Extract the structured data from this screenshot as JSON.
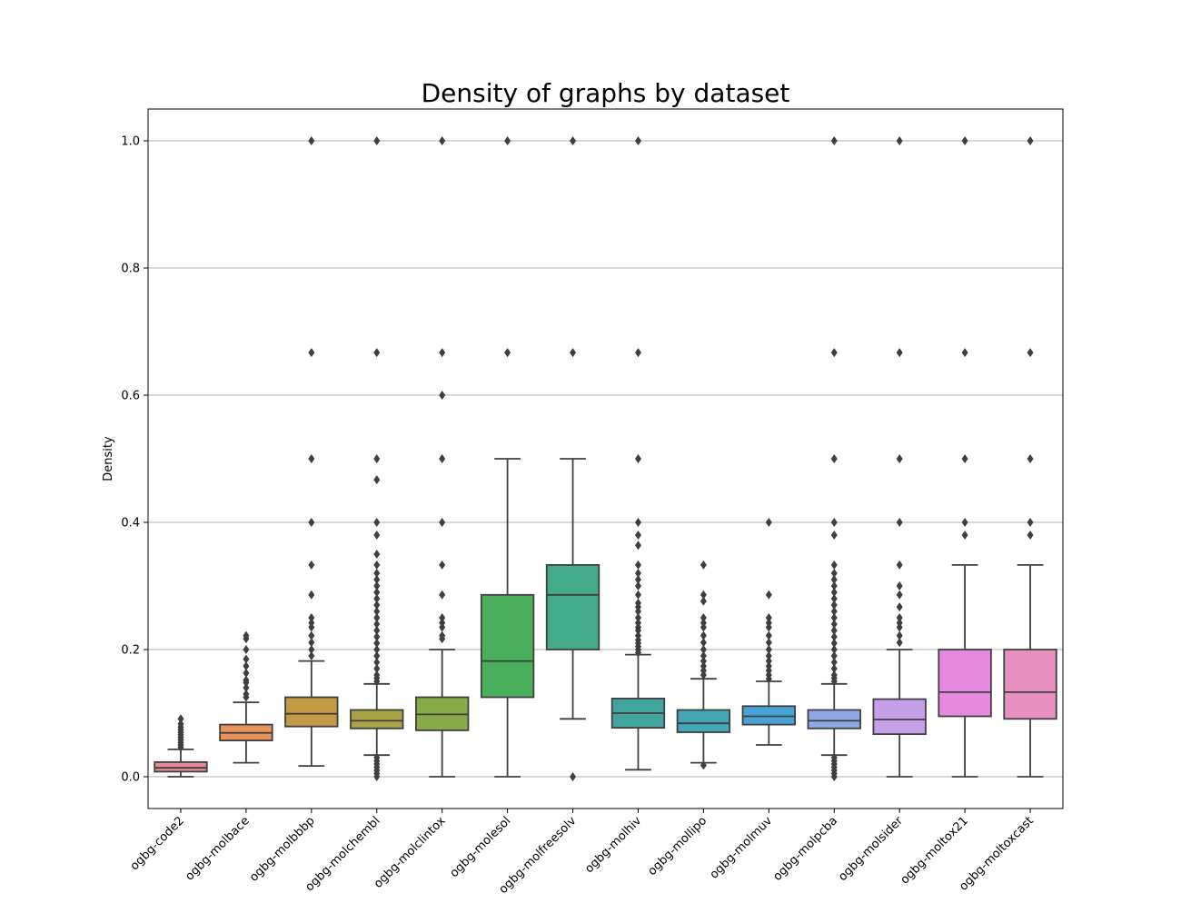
{
  "chart_data": {
    "type": "box",
    "title": "Density of graphs by dataset",
    "xlabel": "",
    "ylabel": "Density",
    "ylim": [
      -0.05,
      1.05
    ],
    "yticks": [
      0.0,
      0.2,
      0.4,
      0.6,
      0.8,
      1.0
    ],
    "ytick_labels": [
      "0.0",
      "0.2",
      "0.4",
      "0.6",
      "0.8",
      "1.0"
    ],
    "grid": "horizontal",
    "categories": [
      "ogbg-code2",
      "ogbg-molbace",
      "ogbg-molbbbp",
      "ogbg-molchembl",
      "ogbg-molclintox",
      "ogbg-molesol",
      "ogbg-molfreesolv",
      "ogbg-molhiv",
      "ogbg-mollipo",
      "ogbg-molmuv",
      "ogbg-molpcba",
      "ogbg-molsider",
      "ogbg-moltox21",
      "ogbg-moltoxcast"
    ],
    "boxes": [
      {
        "whisker_low": 0.0,
        "q1": 0.008,
        "median": 0.014,
        "q3": 0.023,
        "whisker_high": 0.043,
        "color": "#e88b96",
        "outliers": [
          0.046,
          0.05,
          0.054,
          0.058,
          0.062,
          0.066,
          0.07,
          0.074,
          0.078,
          0.083,
          0.091
        ]
      },
      {
        "whisker_low": 0.022,
        "q1": 0.057,
        "median": 0.069,
        "q3": 0.082,
        "whisker_high": 0.117,
        "color": "#e8935a",
        "outliers": [
          0.125,
          0.13,
          0.14,
          0.148,
          0.152,
          0.163,
          0.174,
          0.185,
          0.2,
          0.217,
          0.222
        ]
      },
      {
        "whisker_low": 0.017,
        "q1": 0.079,
        "median": 0.099,
        "q3": 0.125,
        "whisker_high": 0.182,
        "color": "#c39a46",
        "outliers": [
          0.19,
          0.2,
          0.211,
          0.222,
          0.235,
          0.242,
          0.25,
          0.286,
          0.333,
          0.4,
          0.5,
          0.667,
          1.0
        ]
      },
      {
        "whisker_low": 0.034,
        "q1": 0.076,
        "median": 0.088,
        "q3": 0.105,
        "whisker_high": 0.146,
        "color": "#a6a445",
        "outliers": [
          0.0,
          0.005,
          0.01,
          0.015,
          0.02,
          0.025,
          0.03,
          0.15,
          0.155,
          0.16,
          0.17,
          0.18,
          0.19,
          0.2,
          0.21,
          0.22,
          0.23,
          0.24,
          0.25,
          0.26,
          0.27,
          0.28,
          0.29,
          0.3,
          0.31,
          0.32,
          0.333,
          0.35,
          0.38,
          0.4,
          0.467,
          0.5,
          0.667,
          1.0
        ]
      },
      {
        "whisker_low": 0.0,
        "q1": 0.073,
        "median": 0.098,
        "q3": 0.125,
        "whisker_high": 0.2,
        "color": "#88ab47",
        "outliers": [
          0.217,
          0.222,
          0.235,
          0.242,
          0.25,
          0.286,
          0.333,
          0.4,
          0.5,
          0.6,
          0.667,
          1.0
        ]
      },
      {
        "whisker_low": 0.0,
        "q1": 0.125,
        "median": 0.182,
        "q3": 0.286,
        "whisker_high": 0.5,
        "color": "#4aaf5a",
        "outliers": [
          0.667,
          1.0
        ]
      },
      {
        "whisker_low": 0.091,
        "q1": 0.2,
        "median": 0.286,
        "q3": 0.333,
        "whisker_high": 0.5,
        "color": "#45aa8a",
        "outliers": [
          0.0,
          0.667,
          1.0
        ]
      },
      {
        "whisker_low": 0.011,
        "q1": 0.077,
        "median": 0.1,
        "q3": 0.123,
        "whisker_high": 0.192,
        "color": "#43a69e",
        "outliers": [
          0.195,
          0.2,
          0.205,
          0.21,
          0.215,
          0.222,
          0.23,
          0.235,
          0.242,
          0.25,
          0.26,
          0.267,
          0.273,
          0.286,
          0.3,
          0.31,
          0.32,
          0.333,
          0.364,
          0.38,
          0.4,
          0.5,
          0.667,
          1.0
        ]
      },
      {
        "whisker_low": 0.022,
        "q1": 0.07,
        "median": 0.084,
        "q3": 0.105,
        "whisker_high": 0.154,
        "color": "#45a7b4",
        "outliers": [
          0.018,
          0.16,
          0.167,
          0.174,
          0.182,
          0.19,
          0.2,
          0.211,
          0.222,
          0.235,
          0.242,
          0.25,
          0.276,
          0.286,
          0.333
        ]
      },
      {
        "whisker_low": 0.05,
        "q1": 0.082,
        "median": 0.095,
        "q3": 0.111,
        "whisker_high": 0.15,
        "color": "#48a4d8",
        "outliers": [
          0.154,
          0.16,
          0.167,
          0.174,
          0.182,
          0.19,
          0.2,
          0.211,
          0.222,
          0.235,
          0.242,
          0.25,
          0.286,
          0.4
        ]
      },
      {
        "whisker_low": 0.034,
        "q1": 0.076,
        "median": 0.088,
        "q3": 0.105,
        "whisker_high": 0.146,
        "color": "#8fa9e8",
        "outliers": [
          0.0,
          0.005,
          0.01,
          0.015,
          0.02,
          0.025,
          0.03,
          0.15,
          0.155,
          0.16,
          0.17,
          0.18,
          0.19,
          0.2,
          0.21,
          0.22,
          0.23,
          0.24,
          0.25,
          0.26,
          0.27,
          0.28,
          0.29,
          0.3,
          0.31,
          0.32,
          0.333,
          0.38,
          0.4,
          0.5,
          0.667,
          1.0
        ]
      },
      {
        "whisker_low": 0.0,
        "q1": 0.067,
        "median": 0.09,
        "q3": 0.122,
        "whisker_high": 0.2,
        "color": "#c3a0e8",
        "outliers": [
          0.211,
          0.222,
          0.235,
          0.242,
          0.25,
          0.267,
          0.286,
          0.3,
          0.333,
          0.4,
          0.5,
          0.667,
          1.0
        ]
      },
      {
        "whisker_low": 0.0,
        "q1": 0.095,
        "median": 0.133,
        "q3": 0.2,
        "whisker_high": 0.333,
        "color": "#e68ae0",
        "outliers": [
          0.38,
          0.4,
          0.5,
          0.667,
          1.0
        ]
      },
      {
        "whisker_low": 0.0,
        "q1": 0.091,
        "median": 0.133,
        "q3": 0.2,
        "whisker_high": 0.333,
        "color": "#e891bf",
        "outliers": [
          0.38,
          0.4,
          0.5,
          0.667,
          1.0
        ]
      }
    ]
  }
}
